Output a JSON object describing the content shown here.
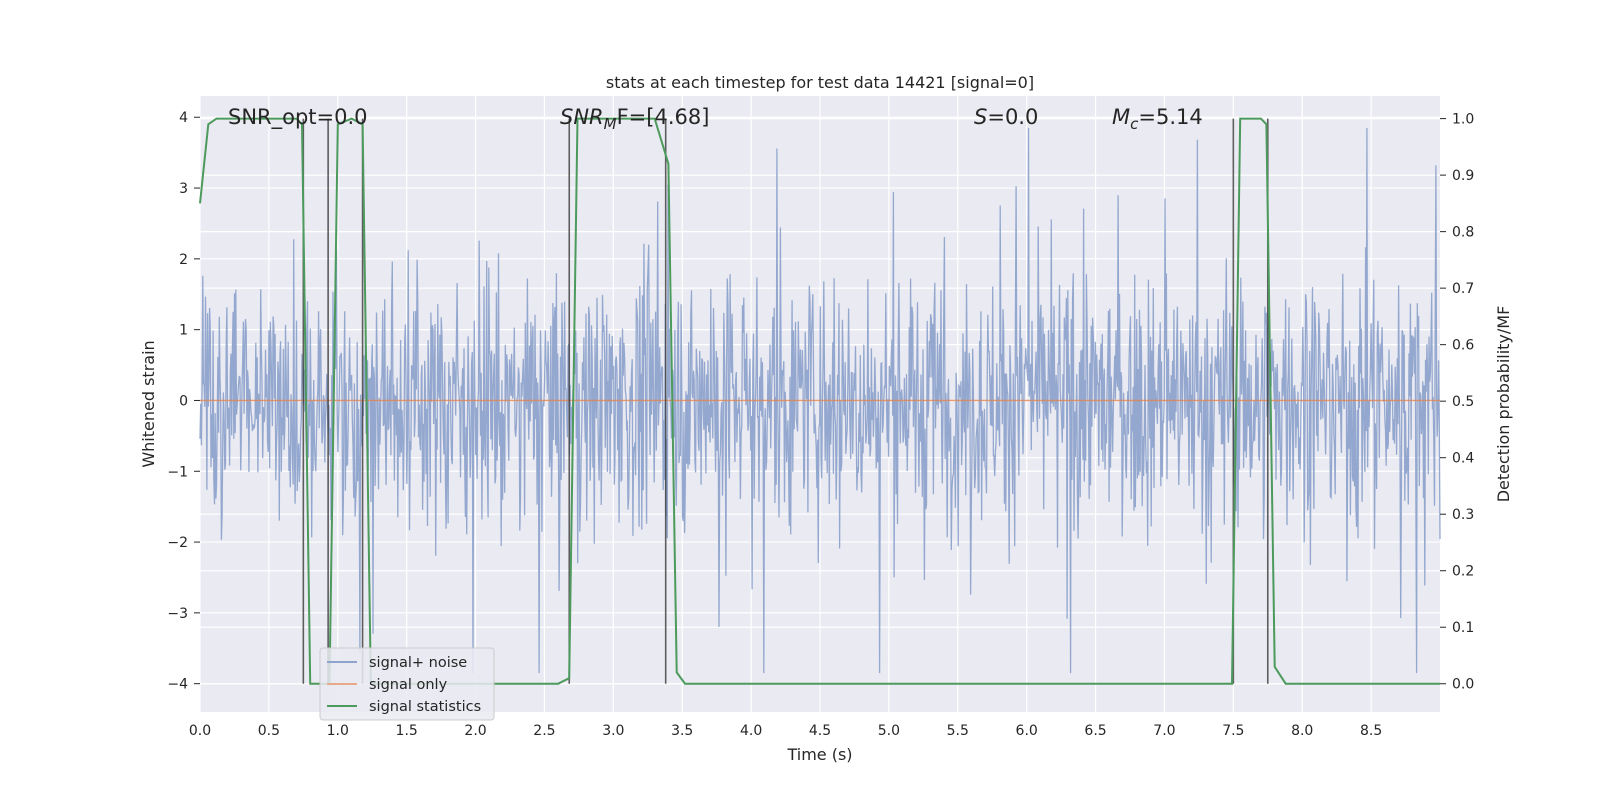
{
  "chart_data": {
    "type": "line",
    "title": "stats at each timestep for test data 14421 [signal=0]",
    "xlabel": "Time (s)",
    "ylabel_left": "Whitened strain",
    "ylabel_right": "Detection probability/MF",
    "xlim": [
      0.0,
      9.0
    ],
    "ylim_left": [
      -4.4,
      4.3
    ],
    "ylim_right": [
      -0.05,
      1.04
    ],
    "xticks": [
      "0.0",
      "0.5",
      "1.0",
      "1.5",
      "2.0",
      "2.5",
      "3.0",
      "3.5",
      "4.0",
      "4.5",
      "5.0",
      "5.5",
      "6.0",
      "6.5",
      "7.0",
      "7.5",
      "8.0",
      "8.5"
    ],
    "yticks_left": [
      "4",
      "3",
      "2",
      "1",
      "0",
      "−1",
      "−2",
      "−3",
      "−4"
    ],
    "yticks_right": [
      "1.0",
      "0.9",
      "0.8",
      "0.7",
      "0.6",
      "0.5",
      "0.4",
      "0.3",
      "0.2",
      "0.1",
      "0.0"
    ],
    "annotations": {
      "snr_opt": "SNR_opt=0.0",
      "snr_mf_main": "SNR",
      "snr_mf_sub": "M",
      "snr_mf_rest": "F=[4.68]",
      "s_var": "S",
      "s_rest": "=0.0",
      "mc_var": "M",
      "mc_sub": "c",
      "mc_rest": "=5.14"
    },
    "legend": {
      "placement": "lower-left",
      "entries": [
        {
          "label": "signal+ noise",
          "color": "#8fa4cc"
        },
        {
          "label": "signal only",
          "color": "#e8a88a"
        },
        {
          "label": "signal statistics",
          "color": "#4c9a5c"
        }
      ]
    },
    "grid": true,
    "colors": {
      "background": "#eaeaf2",
      "grid": "#ffffff",
      "noise": "#8fa4cc",
      "signal": "#dd8452",
      "stats": "#4c9a5c",
      "vlines": "#3a3a3a"
    },
    "series": [
      {
        "name": "signal+ noise",
        "axis": "left",
        "description_values": "dense noise, typical amplitude ±1.5, peaks to about ±3.8"
      },
      {
        "name": "signal only",
        "axis": "left",
        "x": [
          0.0,
          9.0
        ],
        "y": [
          0.0,
          0.0
        ]
      },
      {
        "name": "signal statistics",
        "axis": "right",
        "x": [
          0.0,
          0.06,
          0.12,
          0.3,
          0.5,
          0.7,
          0.74,
          0.8,
          0.9,
          0.94,
          1.0,
          1.1,
          1.18,
          1.24,
          1.3,
          2.6,
          2.68,
          2.74,
          2.8,
          3.0,
          3.3,
          3.4,
          3.46,
          3.52,
          4.0,
          5.0,
          6.0,
          6.5,
          7.0,
          7.49,
          7.55,
          7.6,
          7.7,
          7.74,
          7.8,
          7.88,
          8.0,
          9.0
        ],
        "y": [
          0.85,
          0.99,
          1.0,
          1.0,
          1.0,
          1.0,
          0.99,
          0.0,
          0.0,
          0.0,
          0.99,
          1.0,
          0.99,
          0.0,
          0.0,
          0.0,
          0.01,
          1.0,
          1.0,
          1.0,
          1.0,
          0.92,
          0.02,
          0.0,
          0.0,
          0.0,
          0.0,
          0.0,
          0.0,
          0.0,
          1.0,
          1.0,
          1.0,
          0.99,
          0.03,
          0.0,
          0.0,
          0.0
        ]
      }
    ],
    "vertical_markers_x": [
      0.75,
      0.93,
      1.18,
      2.68,
      3.38,
      7.5,
      7.75
    ]
  }
}
